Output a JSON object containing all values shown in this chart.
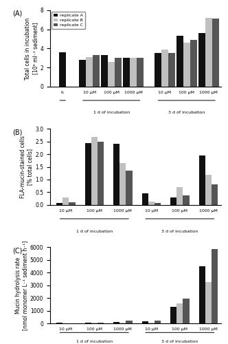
{
  "panel_A": {
    "title": "(A)",
    "ylabel": "Total cells in incubation\n[10⁹ ml⁻¹ sediment]",
    "ylim": [
      0,
      8
    ],
    "yticks": [
      0,
      2,
      4,
      6,
      8
    ],
    "repA": [
      3.6,
      2.8,
      3.3,
      3.05,
      3.5,
      5.3,
      5.6
    ],
    "repB": [
      null,
      3.1,
      2.6,
      3.05,
      3.9,
      4.6,
      7.2
    ],
    "repC": [
      null,
      3.35,
      3.0,
      3.05,
      3.5,
      4.9,
      7.15
    ]
  },
  "panel_B": {
    "title": "(B)",
    "ylabel": "FLA-mucin-stained cells\n[% total cells]",
    "ylim": [
      0,
      3.0
    ],
    "yticks": [
      0.0,
      0.5,
      1.0,
      1.5,
      2.0,
      2.5,
      3.0
    ],
    "repA": [
      0.08,
      2.43,
      2.4,
      0.47,
      0.3,
      1.95
    ],
    "repB": [
      0.3,
      2.67,
      1.65,
      0.13,
      0.7,
      1.18
    ],
    "repC": [
      0.12,
      2.48,
      1.35,
      0.07,
      0.38,
      0.82
    ]
  },
  "panel_C": {
    "title": "(C)",
    "ylabel": "Mucin hydrolysis rate\n[nmol monomer L⁻¹ sediment h⁻¹]",
    "ylim": [
      0,
      6000
    ],
    "yticks": [
      0,
      1000,
      2000,
      3000,
      4000,
      5000,
      6000
    ],
    "repA": [
      30,
      50,
      100,
      140,
      1300,
      4500
    ],
    "repB": [
      25,
      60,
      50,
      50,
      1550,
      3250
    ],
    "repC": [
      20,
      55,
      200,
      190,
      1950,
      5850
    ]
  },
  "colors": {
    "repA": "#111111",
    "repB": "#c0c0c0",
    "repC": "#555555"
  },
  "legend_labels": [
    "replicate A",
    "replicate B",
    "replicate C"
  ],
  "conc_labels": [
    "10 µM",
    "100 µM",
    "1000 µM"
  ],
  "t0_label": "t₀",
  "label_1d": "1 d of incubation",
  "label_3d": "3 d of incubation"
}
